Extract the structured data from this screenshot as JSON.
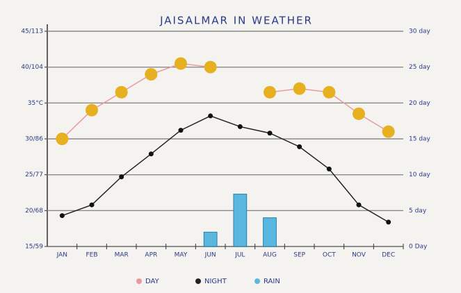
{
  "chart_data": {
    "type": "line",
    "title": "JAISALMAR IN WEATHER",
    "categories": [
      "JAN",
      "FEB",
      "MAR",
      "APR",
      "MAY",
      "JUN",
      "JUL",
      "AUG",
      "SEP",
      "OCT",
      "NOV",
      "DEC"
    ],
    "series": [
      {
        "name": "DAY",
        "type": "line",
        "color": "#e89aa0",
        "marker_color": "#e6b020",
        "values": [
          30,
          34,
          36.5,
          39,
          40.5,
          40,
          null,
          36.5,
          37,
          36.5,
          33.5,
          31
        ]
      },
      {
        "name": "NIGHT",
        "type": "line",
        "color": "#222222",
        "marker_color": "#111111",
        "values": [
          19.3,
          20.8,
          24.7,
          27.9,
          31.2,
          33.2,
          31.7,
          30.8,
          28.9,
          25.8,
          20.8,
          18.4
        ]
      },
      {
        "name": "RAIN",
        "type": "bar",
        "axis": "y2",
        "color": "#5ab8e0",
        "values": [
          null,
          null,
          null,
          null,
          null,
          2,
          7.3,
          4,
          null,
          null,
          null,
          null
        ]
      }
    ],
    "ylim": [
      15,
      45
    ],
    "yticks": [
      {
        "value": 15,
        "label": "15/59"
      },
      {
        "value": 20,
        "label": "20/68"
      },
      {
        "value": 25,
        "label": "25/77"
      },
      {
        "value": 30,
        "label": "30/86"
      },
      {
        "value": 35,
        "label": "35°C"
      },
      {
        "value": 40,
        "label": "40/104"
      },
      {
        "value": 45,
        "label": "45/113"
      }
    ],
    "y2lim": [
      0,
      30
    ],
    "y2ticks": [
      {
        "value": 0,
        "label": "0 Day"
      },
      {
        "value": 5,
        "label": "5 day"
      },
      {
        "value": 10,
        "label": "10 day"
      },
      {
        "value": 15,
        "label": "15 day"
      },
      {
        "value": 20,
        "label": "20 day"
      },
      {
        "value": 25,
        "label": "25 day"
      },
      {
        "value": 30,
        "label": "30 day"
      }
    ],
    "grid": true,
    "legend": "bottom"
  }
}
